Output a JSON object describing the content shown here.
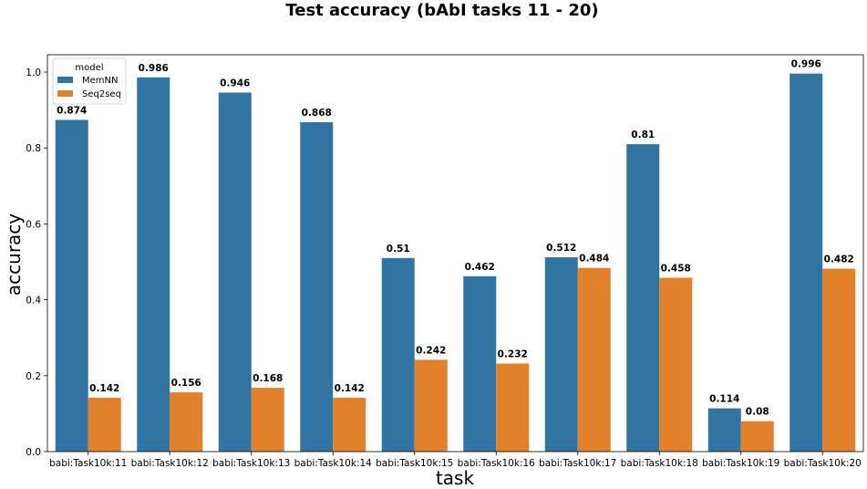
{
  "chart_data": {
    "type": "bar",
    "title": "Test accuracy (bAbI tasks 11 - 20)",
    "xlabel": "task",
    "ylabel": "accuracy",
    "ylim": [
      0,
      1.05
    ],
    "yticks": [
      "0.0",
      "0.2",
      "0.4",
      "0.6",
      "0.8",
      "1.0"
    ],
    "categories": [
      "babi:Task10k:11",
      "babi:Task10k:12",
      "babi:Task10k:13",
      "babi:Task10k:14",
      "babi:Task10k:15",
      "babi:Task10k:16",
      "babi:Task10k:17",
      "babi:Task10k:18",
      "babi:Task10k:19",
      "babi:Task10k:20"
    ],
    "series": [
      {
        "name": "MemNN",
        "color": "#3274a1",
        "values": [
          0.874,
          0.986,
          0.946,
          0.868,
          0.51,
          0.462,
          0.512,
          0.81,
          0.114,
          0.996
        ],
        "labels": [
          "0.874",
          "0.986",
          "0.946",
          "0.868",
          "0.51",
          "0.462",
          "0.512",
          "0.81",
          "0.114",
          "0.996"
        ]
      },
      {
        "name": "Seq2seq",
        "color": "#e1812c",
        "values": [
          0.142,
          0.156,
          0.168,
          0.142,
          0.242,
          0.232,
          0.484,
          0.458,
          0.08,
          0.482
        ],
        "labels": [
          "0.142",
          "0.156",
          "0.168",
          "0.142",
          "0.242",
          "0.232",
          "0.484",
          "0.458",
          "0.08",
          "0.482"
        ]
      }
    ],
    "legend": {
      "title": "model",
      "position": "top-left"
    },
    "grid": false
  }
}
